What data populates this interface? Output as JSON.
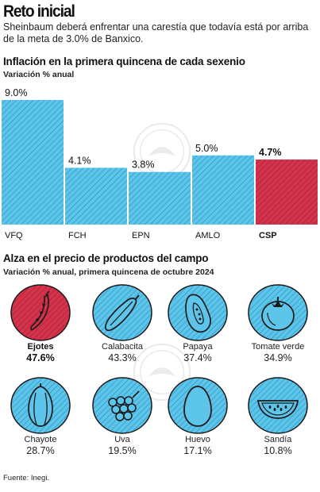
{
  "header": {
    "title": "Reto inicial",
    "intro": "Sheinbaum deberá enfrentar una carestía que todavía está por arriba de la meta de 3.0% de Banxico."
  },
  "section1": {
    "title": "Inflación en la primera quincena de cada sexenio",
    "subtitle": "Variación % anual"
  },
  "section2": {
    "title": "Alza en el precio de productos del campo",
    "subtitle": "Variación % anual, primera quincena de octubre 2024"
  },
  "colors": {
    "blue_fill": "#5ec5ea",
    "blue_stripe": "#2a94c4",
    "red_fill": "#d4344b",
    "red_stripe": "#a81d33",
    "outline": "#1a1a1a"
  },
  "chart_data": {
    "type": "bar",
    "title": "Inflación en la primera quincena de cada sexenio",
    "subtitle": "Variación % anual",
    "categories": [
      "VFQ",
      "FCH",
      "EPN",
      "AMLO",
      "CSP"
    ],
    "values": [
      9.0,
      4.1,
      3.8,
      5.0,
      4.7
    ],
    "value_labels": [
      "9.0%",
      "4.1%",
      "3.8%",
      "5.0%",
      "4.7%"
    ],
    "highlight": "CSP",
    "ylim": [
      0,
      9.0
    ],
    "grid": false,
    "legend": "none"
  },
  "products": [
    {
      "name": "Ejotes",
      "value": "47.6%",
      "icon": "green-bean-icon",
      "highlight": true
    },
    {
      "name": "Calabacita",
      "value": "43.3%",
      "icon": "zucchini-icon",
      "highlight": false
    },
    {
      "name": "Papaya",
      "value": "37.4%",
      "icon": "papaya-icon",
      "highlight": false
    },
    {
      "name": "Tomate verde",
      "value": "34.9%",
      "icon": "tomato-icon",
      "highlight": false
    },
    {
      "name": "Chayote",
      "value": "28.7%",
      "icon": "chayote-icon",
      "highlight": false
    },
    {
      "name": "Uva",
      "value": "19.5%",
      "icon": "grapes-icon",
      "highlight": false
    },
    {
      "name": "Huevo",
      "value": "17.1%",
      "icon": "egg-icon",
      "highlight": false
    },
    {
      "name": "Sandía",
      "value": "10.8%",
      "icon": "watermelon-icon",
      "highlight": false
    }
  ],
  "source": "Fuente: Inegi."
}
